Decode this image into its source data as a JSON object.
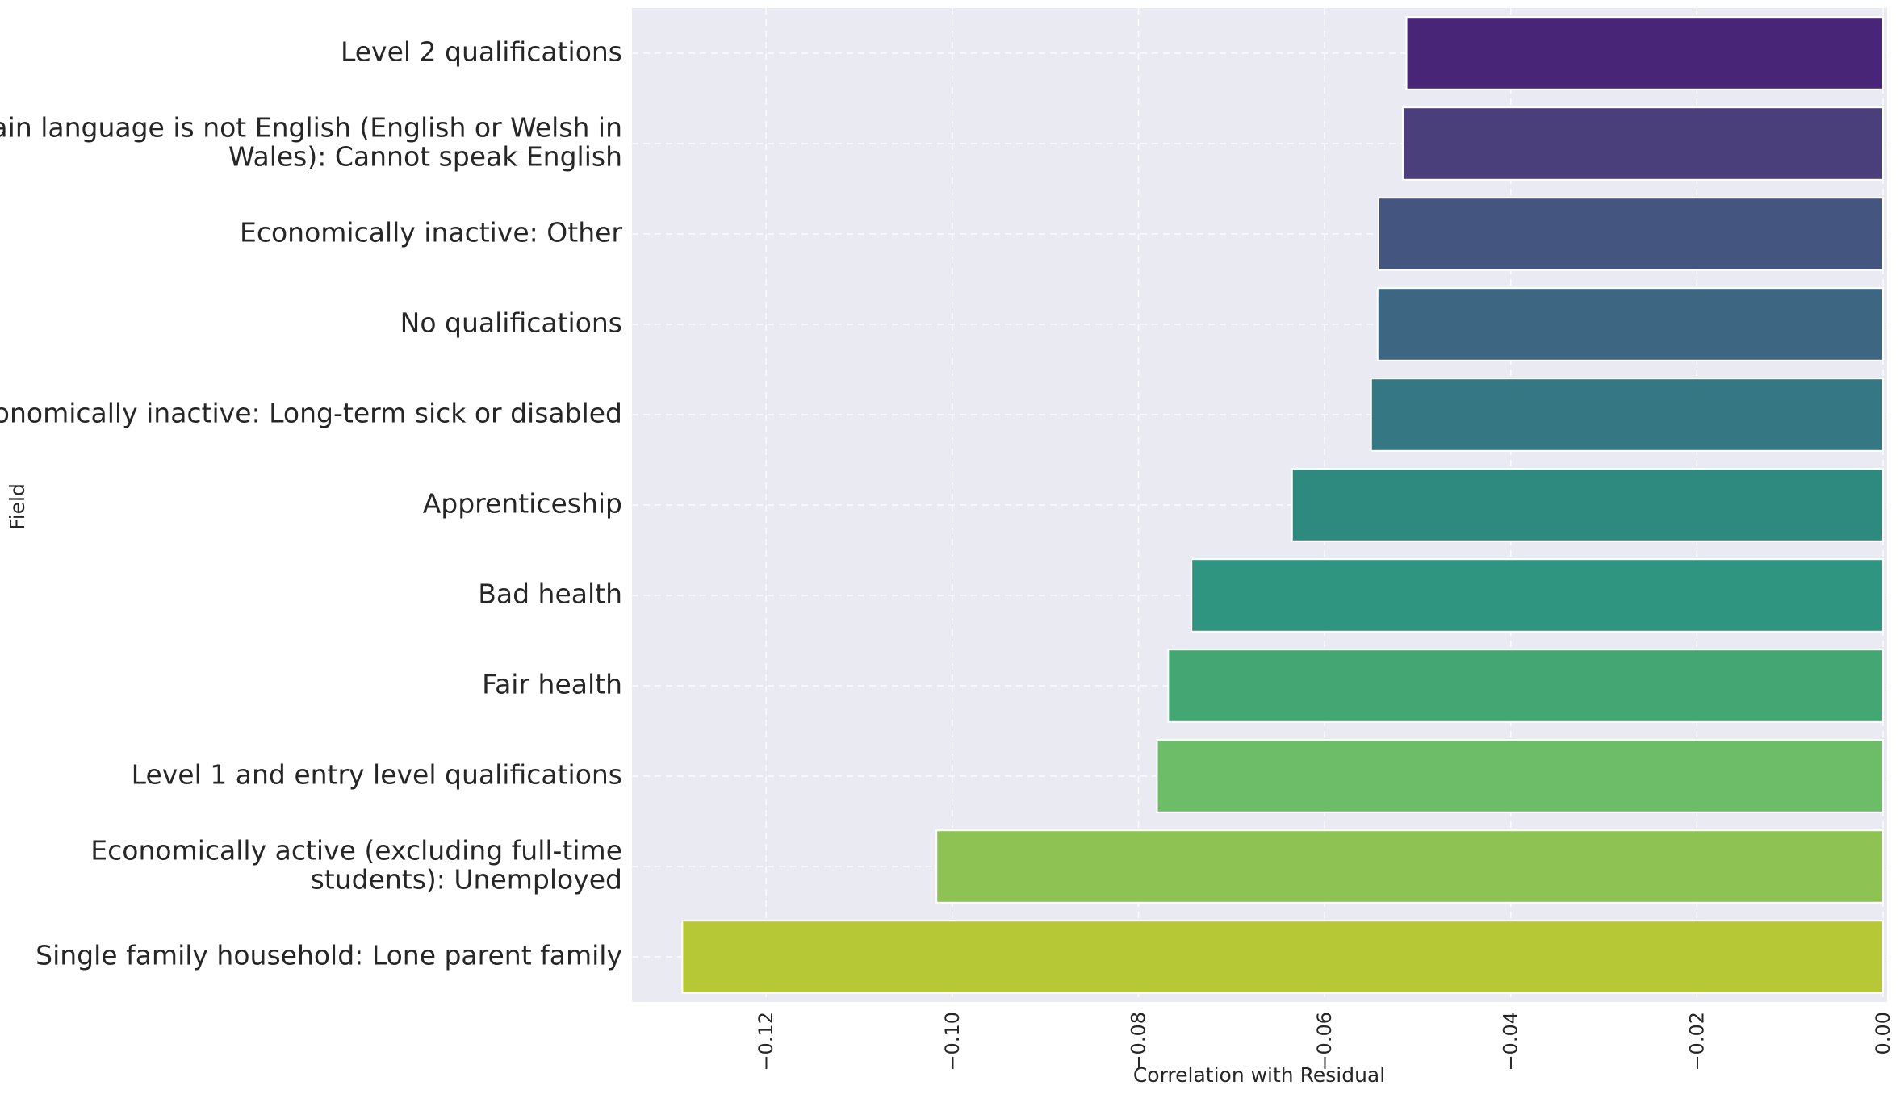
{
  "chart_data": {
    "type": "bar",
    "orientation": "horizontal",
    "xlabel": "Correlation with Residual",
    "ylabel": "Field",
    "xlim": [
      -0.1355,
      0.0
    ],
    "xticks": [
      -0.12,
      -0.1,
      -0.08,
      -0.06,
      -0.04,
      -0.02,
      0.0
    ],
    "xtick_labels": [
      "−0.12",
      "−0.10",
      "−0.08",
      "−0.06",
      "−0.04",
      "−0.02",
      "0.00"
    ],
    "grid": true,
    "background_color": "#eaeaf2",
    "categories": [
      [
        "Level 2 qualifications"
      ],
      [
        "Main language is not English (English or Welsh in",
        "Wales): Cannot speak English"
      ],
      [
        "Economically inactive: Other"
      ],
      [
        "No qualifications"
      ],
      [
        "Economically inactive: Long-term sick or disabled"
      ],
      [
        "Apprenticeship"
      ],
      [
        "Bad health"
      ],
      [
        "Fair health"
      ],
      [
        "Level 1 and entry level qualifications"
      ],
      [
        "Economically active (excluding full-time",
        "students): Unemployed"
      ],
      [
        "Single family household: Lone parent family"
      ]
    ],
    "values": [
      -0.0512,
      -0.0516,
      -0.0542,
      -0.0543,
      -0.055,
      -0.0635,
      -0.0743,
      -0.0768,
      -0.078,
      -0.1017,
      -0.129
    ],
    "colors": [
      "#482576",
      "#4a3f7a",
      "#44567f",
      "#3c6681",
      "#357782",
      "#2e8a7e",
      "#2f9480",
      "#43a673",
      "#6dbd68",
      "#8ec353",
      "#b6c835"
    ]
  }
}
